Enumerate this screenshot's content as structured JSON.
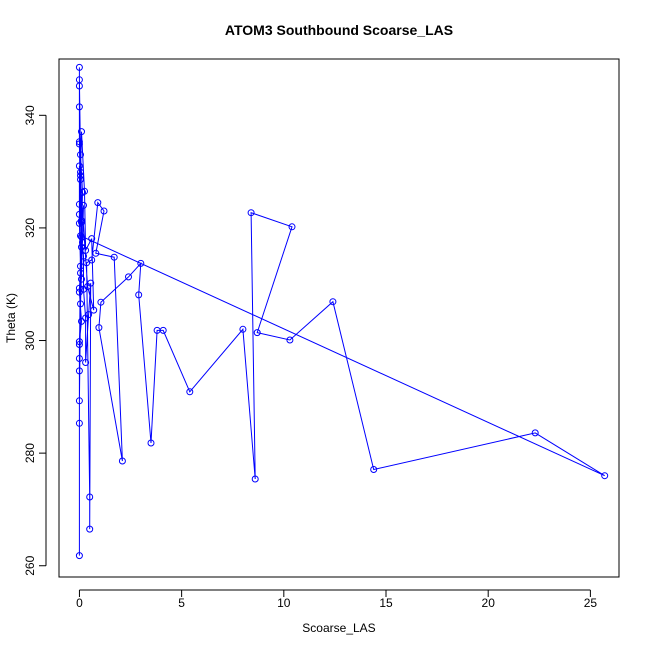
{
  "chart_data": {
    "type": "line",
    "title": "ATOM3 Southbound Scoarse_LAS",
    "xlabel": "Scoarse_LAS",
    "ylabel": "Theta (K)",
    "xlim": [
      -1.0,
      26.4
    ],
    "ylim": [
      258,
      350
    ],
    "x_ticks": [
      0,
      5,
      10,
      15,
      20,
      25
    ],
    "y_ticks": [
      260,
      280,
      300,
      320,
      340
    ],
    "x_tick_labels": [
      "0",
      "5",
      "10",
      "15",
      "20",
      "25"
    ],
    "y_tick_labels": [
      "260",
      "280",
      "300",
      "320",
      "340"
    ],
    "grid": false,
    "legend": "none",
    "colors": {
      "series": "#0000ff",
      "axis": "#000000"
    },
    "series": [
      {
        "marker": "open-circle",
        "points": [
          [
            0.0,
            261.8
          ],
          [
            0.0,
            285.3
          ],
          [
            0.0,
            296.8
          ],
          [
            0.0,
            299.3
          ],
          [
            0.05,
            306.5
          ],
          [
            0.0,
            309.3
          ],
          [
            0.05,
            312.0
          ],
          [
            0.1,
            316.6
          ],
          [
            0.1,
            321.3
          ],
          [
            0.0,
            324.2
          ],
          [
            0.05,
            329.3
          ],
          [
            0.0,
            335.3
          ],
          [
            0.0,
            341.5
          ],
          [
            0.0,
            345.2
          ],
          [
            0.0,
            348.5
          ],
          [
            0.0,
            346.3
          ],
          [
            0.05,
            333.0
          ],
          [
            0.15,
            326.3
          ],
          [
            0.1,
            318.4
          ],
          [
            0.2,
            315.0
          ],
          [
            0.2,
            309.1
          ],
          [
            0.3,
            304.0
          ],
          [
            0.3,
            296.1
          ],
          [
            0.45,
            304.6
          ],
          [
            0.55,
            310.2
          ],
          [
            0.5,
            266.5
          ],
          [
            0.5,
            272.2
          ],
          [
            0.35,
            313.8
          ],
          [
            0.6,
            314.3
          ],
          [
            0.9,
            324.5
          ],
          [
            1.2,
            323.0
          ],
          [
            0.8,
            315.5
          ],
          [
            1.7,
            314.8
          ],
          [
            2.1,
            278.6
          ],
          [
            0.95,
            302.3
          ],
          [
            1.05,
            306.8
          ],
          [
            2.4,
            311.3
          ],
          [
            3.0,
            313.7
          ],
          [
            2.9,
            308.1
          ],
          [
            3.5,
            281.8
          ],
          [
            3.8,
            301.8
          ],
          [
            4.1,
            301.8
          ],
          [
            5.4,
            290.9
          ],
          [
            8.0,
            302.0
          ],
          [
            8.6,
            275.4
          ],
          [
            8.4,
            322.7
          ],
          [
            10.4,
            320.2
          ],
          [
            8.7,
            301.4
          ],
          [
            10.3,
            300.1
          ],
          [
            12.4,
            306.9
          ],
          [
            14.4,
            277.1
          ],
          [
            22.3,
            283.6
          ],
          [
            25.7,
            276.0
          ],
          [
            0.05,
            318.6
          ],
          [
            0.0,
            294.6
          ],
          [
            0.0,
            289.3
          ],
          [
            0.1,
            321.0
          ],
          [
            0.05,
            329.9
          ],
          [
            0.1,
            337.1
          ],
          [
            0.25,
            326.5
          ],
          [
            0.3,
            316.0
          ],
          [
            0.6,
            318.1
          ],
          [
            0.7,
            305.4
          ],
          [
            0.4,
            309.6
          ],
          [
            0.0,
            331.0
          ],
          [
            0.0,
            320.8
          ],
          [
            0.05,
            313.2
          ],
          [
            0.0,
            308.6
          ],
          [
            0.1,
            303.4
          ],
          [
            0.0,
            299.8
          ],
          [
            0.2,
            324.0
          ],
          [
            0.15,
            317.4
          ],
          [
            0.0,
            322.4
          ],
          [
            0.05,
            328.6
          ],
          [
            0.0,
            334.9
          ],
          [
            0.1,
            310.9
          ]
        ]
      }
    ]
  }
}
